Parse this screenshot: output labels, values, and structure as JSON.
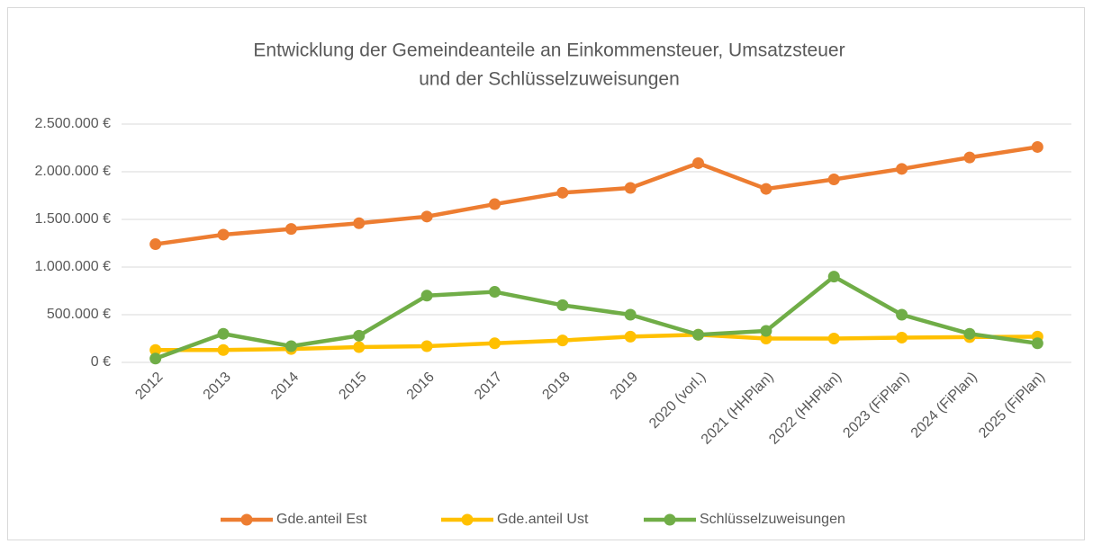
{
  "chart_data": {
    "type": "line",
    "title": [
      "Entwicklung der Gemeindeanteile an Einkommensteuer, Umsatzsteuer",
      "und der Schlüsselzuweisungen"
    ],
    "categories": [
      "2012",
      "2013",
      "2014",
      "2015",
      "2016",
      "2017",
      "2018",
      "2019",
      "2020 (vorl.)",
      "2021 (HHPlan)",
      "2022 (HHPlan)",
      "2023 (FiPlan)",
      "2024 (FiPlan)",
      "2025 (FiPlan)"
    ],
    "series": [
      {
        "name": "Gde.anteil Est",
        "color": "#ED7D31",
        "values": [
          1240000,
          1340000,
          1400000,
          1460000,
          1530000,
          1660000,
          1780000,
          1830000,
          2090000,
          1820000,
          1920000,
          2030000,
          2150000,
          2260000
        ]
      },
      {
        "name": "Gde.anteil Ust",
        "color": "#FFC000",
        "values": [
          130000,
          130000,
          140000,
          160000,
          170000,
          200000,
          230000,
          270000,
          290000,
          250000,
          250000,
          260000,
          265000,
          270000
        ]
      },
      {
        "name": "Schlüsselzuweisungen",
        "color": "#70AD47",
        "values": [
          40000,
          300000,
          170000,
          280000,
          700000,
          740000,
          600000,
          500000,
          290000,
          330000,
          900000,
          500000,
          300000,
          200000
        ]
      }
    ],
    "ylim": [
      0,
      2500000
    ],
    "yticks": [
      {
        "value": 0,
        "label": "0 €"
      },
      {
        "value": 500000,
        "label": "500.000 €"
      },
      {
        "value": 1000000,
        "label": "1.000.000 €"
      },
      {
        "value": 1500000,
        "label": "1.500.000 €"
      },
      {
        "value": 2000000,
        "label": "2.000.000 €"
      },
      {
        "value": 2500000,
        "label": "2.500.000 €"
      }
    ],
    "grid": true,
    "legend": "bottom"
  }
}
